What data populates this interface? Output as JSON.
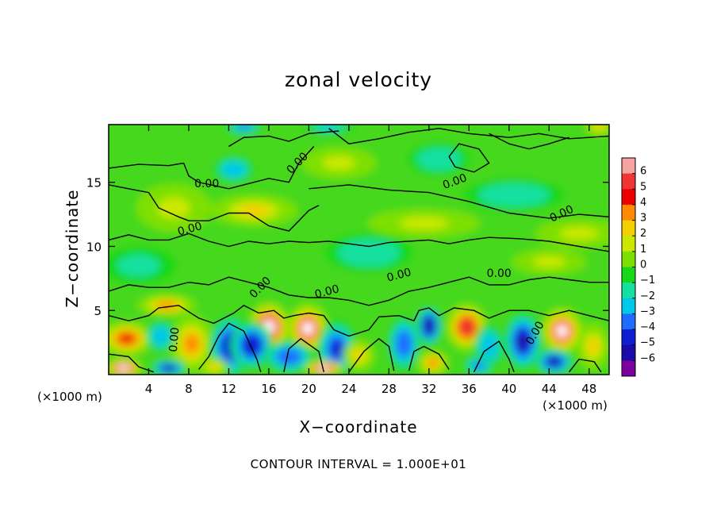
{
  "chart_data": {
    "type": "heatmap",
    "title": "zonal velocity",
    "xlabel": "X−coordinate",
    "ylabel": "Z−coordinate",
    "x_unit_left": "(×1000 m)",
    "x_unit_right": "(×1000 m)",
    "footer": "CONTOUR INTERVAL = 1.000E+01",
    "xlim": [
      0,
      50
    ],
    "ylim": [
      0,
      19.5
    ],
    "x_ticks": [
      4,
      8,
      12,
      16,
      20,
      24,
      28,
      32,
      36,
      40,
      44,
      48
    ],
    "y_ticks": [
      5,
      10,
      15
    ],
    "colorbar": {
      "levels": [
        6,
        5,
        4,
        3,
        2,
        1,
        0,
        -1,
        -2,
        -3,
        -4,
        -5,
        -6
      ],
      "colors": [
        "#f7a1a1",
        "#f03535",
        "#ee0000",
        "#ff8a00",
        "#f3d000",
        "#cbe800",
        "#7ee000",
        "#16d816",
        "#16e0a0",
        "#00c8e8",
        "#1f6cff",
        "#0d1fd0",
        "#1a0aa8",
        "#7a00a0"
      ]
    },
    "contour_labels": [
      {
        "text": "0.00",
        "x": 19.1,
        "y": 16.3,
        "rot": -45
      },
      {
        "text": "0.00",
        "x": 9.8,
        "y": 14.6,
        "rot": 0
      },
      {
        "text": "0.00",
        "x": 34.7,
        "y": 14.8,
        "rot": -20
      },
      {
        "text": "0.00",
        "x": 45.4,
        "y": 12.3,
        "rot": -25
      },
      {
        "text": "0.00",
        "x": 8.2,
        "y": 11.1,
        "rot": -15
      },
      {
        "text": "0.00",
        "x": 29.1,
        "y": 7.5,
        "rot": -15
      },
      {
        "text": "0.00",
        "x": 39.0,
        "y": 7.6,
        "rot": 0
      },
      {
        "text": "0.00",
        "x": 15.4,
        "y": 6.6,
        "rot": -45
      },
      {
        "text": "0.00",
        "x": 21.9,
        "y": 6.2,
        "rot": -15
      },
      {
        "text": "0.00",
        "x": 42.9,
        "y": 3.1,
        "rot": -60
      },
      {
        "text": "0.00",
        "x": 6.9,
        "y": 2.7,
        "rot": -85
      }
    ],
    "blobs": [
      {
        "x": 1.8,
        "y": 2.8,
        "rx": 2.2,
        "ry": 1.1,
        "v": 4.5
      },
      {
        "x": 5.8,
        "y": 5.4,
        "rx": 2.4,
        "ry": 0.7,
        "v": 3.5
      },
      {
        "x": 8.3,
        "y": 2.4,
        "rx": 1.8,
        "ry": 1.8,
        "v": 4.0
      },
      {
        "x": 5.2,
        "y": 3.0,
        "rx": 1.2,
        "ry": 1.0,
        "v": -2.5
      },
      {
        "x": 12.2,
        "y": 2.2,
        "rx": 1.7,
        "ry": 1.9,
        "v": -4.5
      },
      {
        "x": 16.0,
        "y": 3.7,
        "rx": 1.7,
        "ry": 1.6,
        "v": 6.5
      },
      {
        "x": 14.3,
        "y": 2.3,
        "rx": 1.7,
        "ry": 1.5,
        "v": -4.5
      },
      {
        "x": 19.9,
        "y": 3.6,
        "rx": 1.7,
        "ry": 1.6,
        "v": 6.0
      },
      {
        "x": 18.0,
        "y": 1.4,
        "rx": 2.0,
        "ry": 1.0,
        "v": -3.5
      },
      {
        "x": 22.8,
        "y": 2.0,
        "rx": 1.6,
        "ry": 1.8,
        "v": -4.0
      },
      {
        "x": 25.0,
        "y": 1.5,
        "rx": 1.3,
        "ry": 1.0,
        "v": 2.5
      },
      {
        "x": 29.5,
        "y": 2.4,
        "rx": 1.3,
        "ry": 1.7,
        "v": -3.5
      },
      {
        "x": 32.0,
        "y": 3.8,
        "rx": 1.0,
        "ry": 1.2,
        "v": -5.5
      },
      {
        "x": 32.4,
        "y": 0.9,
        "rx": 1.3,
        "ry": 0.8,
        "v": 3.5
      },
      {
        "x": 35.8,
        "y": 3.7,
        "rx": 1.7,
        "ry": 1.5,
        "v": 5.5
      },
      {
        "x": 38.0,
        "y": 2.2,
        "rx": 1.2,
        "ry": 1.4,
        "v": -2.8
      },
      {
        "x": 41.4,
        "y": 2.6,
        "rx": 1.5,
        "ry": 1.8,
        "v": -5.0
      },
      {
        "x": 45.3,
        "y": 3.4,
        "rx": 1.7,
        "ry": 1.5,
        "v": 6.0
      },
      {
        "x": 44.5,
        "y": 1.0,
        "rx": 1.5,
        "ry": 0.8,
        "v": -5.0
      },
      {
        "x": 48.4,
        "y": 2.2,
        "rx": 1.3,
        "ry": 1.5,
        "v": 2.8
      },
      {
        "x": 1.5,
        "y": 0.5,
        "rx": 1.5,
        "ry": 0.6,
        "v": 6.5
      },
      {
        "x": 6.0,
        "y": 0.5,
        "rx": 1.4,
        "ry": 0.5,
        "v": -5.0
      },
      {
        "x": 21.5,
        "y": 0.5,
        "rx": 1.6,
        "ry": 0.5,
        "v": 6.5
      },
      {
        "x": 10.5,
        "y": 0.6,
        "rx": 1.2,
        "ry": 0.6,
        "v": 3.0
      },
      {
        "x": 37.0,
        "y": 0.7,
        "rx": 1.2,
        "ry": 0.6,
        "v": -3.0
      },
      {
        "x": 12.5,
        "y": 16.0,
        "rx": 1.6,
        "ry": 0.8,
        "v": -2.5
      },
      {
        "x": 14.5,
        "y": 12.8,
        "rx": 3.5,
        "ry": 1.0,
        "v": 2.5
      },
      {
        "x": 31.5,
        "y": 11.8,
        "rx": 4.5,
        "ry": 0.9,
        "v": 1.5
      },
      {
        "x": 47.0,
        "y": 11.0,
        "rx": 3.5,
        "ry": 0.9,
        "v": 2.0
      },
      {
        "x": 23.0,
        "y": 16.5,
        "rx": 3.0,
        "ry": 1.0,
        "v": 2.0
      },
      {
        "x": 6.5,
        "y": 13.0,
        "rx": 3.0,
        "ry": 1.5,
        "v": 1.2
      },
      {
        "x": 33.0,
        "y": 16.8,
        "rx": 2.5,
        "ry": 1.0,
        "v": -1.5
      },
      {
        "x": 13.5,
        "y": 19.3,
        "rx": 1.5,
        "ry": 0.4,
        "v": -3.0
      },
      {
        "x": 22.0,
        "y": 19.3,
        "rx": 2.0,
        "ry": 0.4,
        "v": -2.0
      },
      {
        "x": 49.0,
        "y": 19.3,
        "rx": 1.2,
        "ry": 0.5,
        "v": 3.0
      },
      {
        "x": 26.0,
        "y": 9.5,
        "rx": 3.5,
        "ry": 1.2,
        "v": -1.2
      },
      {
        "x": 40.5,
        "y": 14.0,
        "rx": 4.0,
        "ry": 1.0,
        "v": -1.2
      },
      {
        "x": 3.0,
        "y": 8.5,
        "rx": 3.0,
        "ry": 1.2,
        "v": -1.0
      },
      {
        "x": 44.0,
        "y": 8.8,
        "rx": 3.0,
        "ry": 0.8,
        "v": 1.5
      }
    ]
  }
}
